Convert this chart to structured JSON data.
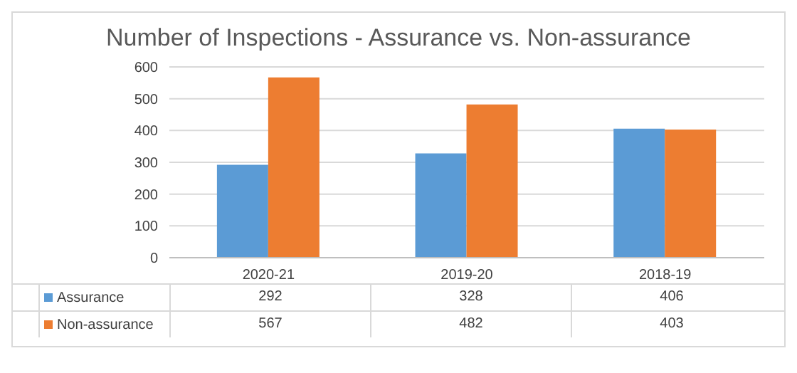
{
  "chart_data": {
    "type": "bar",
    "title": "Number of Inspections - Assurance vs. Non-assurance",
    "categories": [
      "2020-21",
      "2019-20",
      "2018-19"
    ],
    "series": [
      {
        "name": "Assurance",
        "color": "#5b9bd5",
        "values": [
          292,
          328,
          406
        ]
      },
      {
        "name": "Non-assurance",
        "color": "#ed7d31",
        "values": [
          567,
          482,
          403
        ]
      }
    ],
    "ylim": [
      0,
      600
    ],
    "yticks": [
      0,
      100,
      200,
      300,
      400,
      500,
      600
    ],
    "grid": "y",
    "legend": "bottom",
    "data_labels": true
  }
}
